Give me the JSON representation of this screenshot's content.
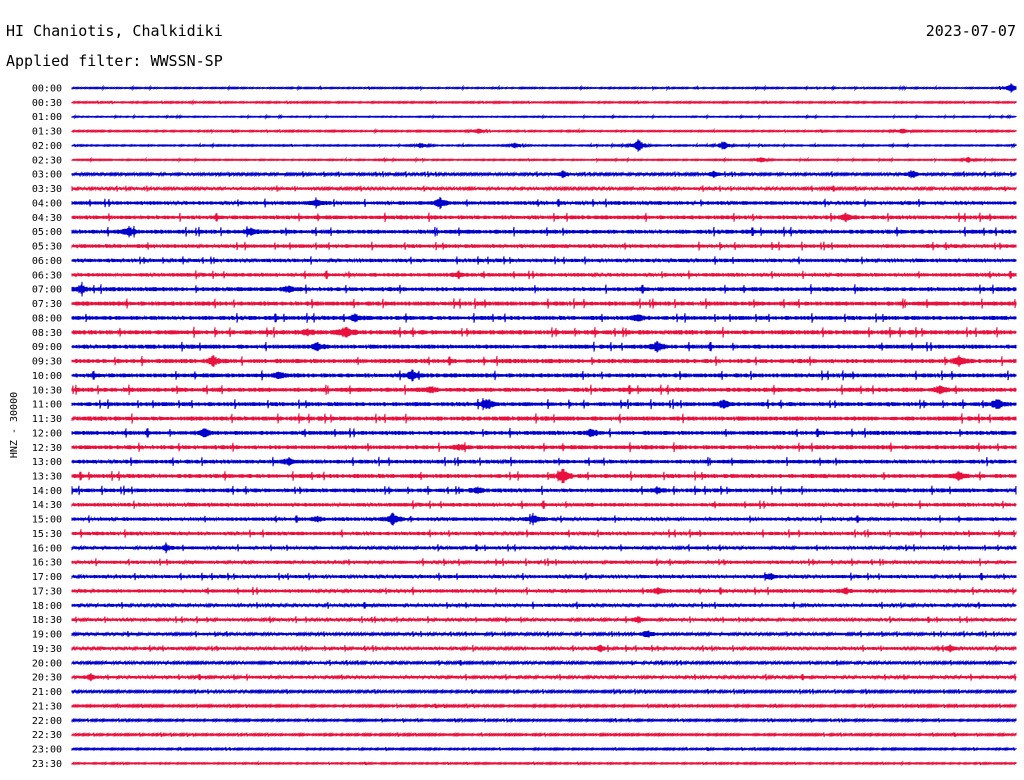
{
  "header": {
    "station": "HI Chaniotis, Chalkidiki",
    "date": "2023-07-07",
    "filter": "Applied filter: WWSSN-SP"
  },
  "y_label": "HNZ - 30000",
  "colors": {
    "odd": "#0000cc",
    "even": "#e8103c"
  },
  "chart_data": {
    "type": "line",
    "title": "",
    "ylabel": "HNZ - 30000",
    "row_labels": [
      "00:00",
      "00:30",
      "01:00",
      "01:30",
      "02:00",
      "02:30",
      "03:00",
      "03:30",
      "04:00",
      "04:30",
      "05:00",
      "05:30",
      "06:00",
      "06:30",
      "07:00",
      "07:30",
      "08:00",
      "08:30",
      "09:00",
      "09:30",
      "10:00",
      "10:30",
      "11:00",
      "11:30",
      "12:00",
      "12:30",
      "13:00",
      "13:30",
      "14:00",
      "14:30",
      "15:00",
      "15:30",
      "16:00",
      "16:30",
      "17:00",
      "17:30",
      "18:00",
      "18:30",
      "19:00",
      "19:30",
      "20:00",
      "20:30",
      "21:00",
      "21:30",
      "22:00",
      "22:30",
      "23:00",
      "23:30"
    ],
    "row_noise": [
      0.6,
      0.7,
      0.5,
      0.7,
      0.6,
      0.6,
      1.2,
      1.3,
      1.8,
      1.9,
      2.0,
      1.8,
      1.7,
      1.8,
      2.0,
      2.1,
      2.0,
      2.2,
      2.0,
      2.1,
      2.0,
      2.1,
      2.0,
      2.1,
      2.0,
      2.0,
      1.9,
      2.0,
      1.9,
      1.8,
      1.7,
      1.7,
      1.5,
      1.6,
      1.6,
      1.7,
      1.5,
      1.4,
      1.3,
      1.4,
      1.2,
      1.4,
      1.1,
      1.0,
      0.9,
      0.9,
      0.8,
      0.7
    ],
    "events": [
      {
        "row": 0,
        "t": 0.995,
        "amp": 6
      },
      {
        "row": 3,
        "t": 0.43,
        "amp": 3
      },
      {
        "row": 3,
        "t": 0.88,
        "amp": 3
      },
      {
        "row": 4,
        "t": 0.6,
        "amp": 7
      },
      {
        "row": 4,
        "t": 0.69,
        "amp": 5
      },
      {
        "row": 4,
        "t": 0.37,
        "amp": 3
      },
      {
        "row": 4,
        "t": 0.47,
        "amp": 3
      },
      {
        "row": 5,
        "t": 0.73,
        "amp": 3
      },
      {
        "row": 5,
        "t": 0.95,
        "amp": 3
      },
      {
        "row": 6,
        "t": 0.68,
        "amp": 3
      },
      {
        "row": 6,
        "t": 0.89,
        "amp": 4
      },
      {
        "row": 6,
        "t": 0.52,
        "amp": 3
      },
      {
        "row": 8,
        "t": 0.39,
        "amp": 5
      },
      {
        "row": 8,
        "t": 0.26,
        "amp": 3
      },
      {
        "row": 9,
        "t": 0.82,
        "amp": 4
      },
      {
        "row": 10,
        "t": 0.06,
        "amp": 5
      },
      {
        "row": 10,
        "t": 0.19,
        "amp": 3
      },
      {
        "row": 13,
        "t": 0.41,
        "amp": 3
      },
      {
        "row": 14,
        "t": 0.01,
        "amp": 4
      },
      {
        "row": 14,
        "t": 0.23,
        "amp": 3
      },
      {
        "row": 16,
        "t": 0.3,
        "amp": 4
      },
      {
        "row": 16,
        "t": 0.6,
        "amp": 3
      },
      {
        "row": 17,
        "t": 0.29,
        "amp": 6
      },
      {
        "row": 17,
        "t": 0.25,
        "amp": 3
      },
      {
        "row": 18,
        "t": 0.26,
        "amp": 4
      },
      {
        "row": 18,
        "t": 0.62,
        "amp": 5
      },
      {
        "row": 19,
        "t": 0.15,
        "amp": 5
      },
      {
        "row": 19,
        "t": 0.94,
        "amp": 5
      },
      {
        "row": 20,
        "t": 0.36,
        "amp": 5
      },
      {
        "row": 20,
        "t": 0.22,
        "amp": 3
      },
      {
        "row": 21,
        "t": 0.38,
        "amp": 3
      },
      {
        "row": 21,
        "t": 0.92,
        "amp": 4
      },
      {
        "row": 22,
        "t": 0.44,
        "amp": 6
      },
      {
        "row": 22,
        "t": 0.69,
        "amp": 4
      },
      {
        "row": 22,
        "t": 0.98,
        "amp": 5
      },
      {
        "row": 24,
        "t": 0.14,
        "amp": 4
      },
      {
        "row": 24,
        "t": 0.55,
        "amp": 4
      },
      {
        "row": 25,
        "t": 0.41,
        "amp": 3
      },
      {
        "row": 26,
        "t": 0.23,
        "amp": 3
      },
      {
        "row": 27,
        "t": 0.52,
        "amp": 7
      },
      {
        "row": 27,
        "t": 0.94,
        "amp": 4
      },
      {
        "row": 28,
        "t": 0.43,
        "amp": 3
      },
      {
        "row": 28,
        "t": 0.62,
        "amp": 3
      },
      {
        "row": 30,
        "t": 0.34,
        "amp": 7
      },
      {
        "row": 30,
        "t": 0.49,
        "amp": 5
      },
      {
        "row": 30,
        "t": 0.26,
        "amp": 3
      },
      {
        "row": 32,
        "t": 0.1,
        "amp": 3
      },
      {
        "row": 34,
        "t": 0.74,
        "amp": 3
      },
      {
        "row": 35,
        "t": 0.62,
        "amp": 3
      },
      {
        "row": 35,
        "t": 0.82,
        "amp": 3
      },
      {
        "row": 37,
        "t": 0.6,
        "amp": 3
      },
      {
        "row": 38,
        "t": 0.61,
        "amp": 4
      },
      {
        "row": 39,
        "t": 0.56,
        "amp": 3
      },
      {
        "row": 39,
        "t": 0.93,
        "amp": 3
      },
      {
        "row": 41,
        "t": 0.02,
        "amp": 3
      }
    ]
  }
}
